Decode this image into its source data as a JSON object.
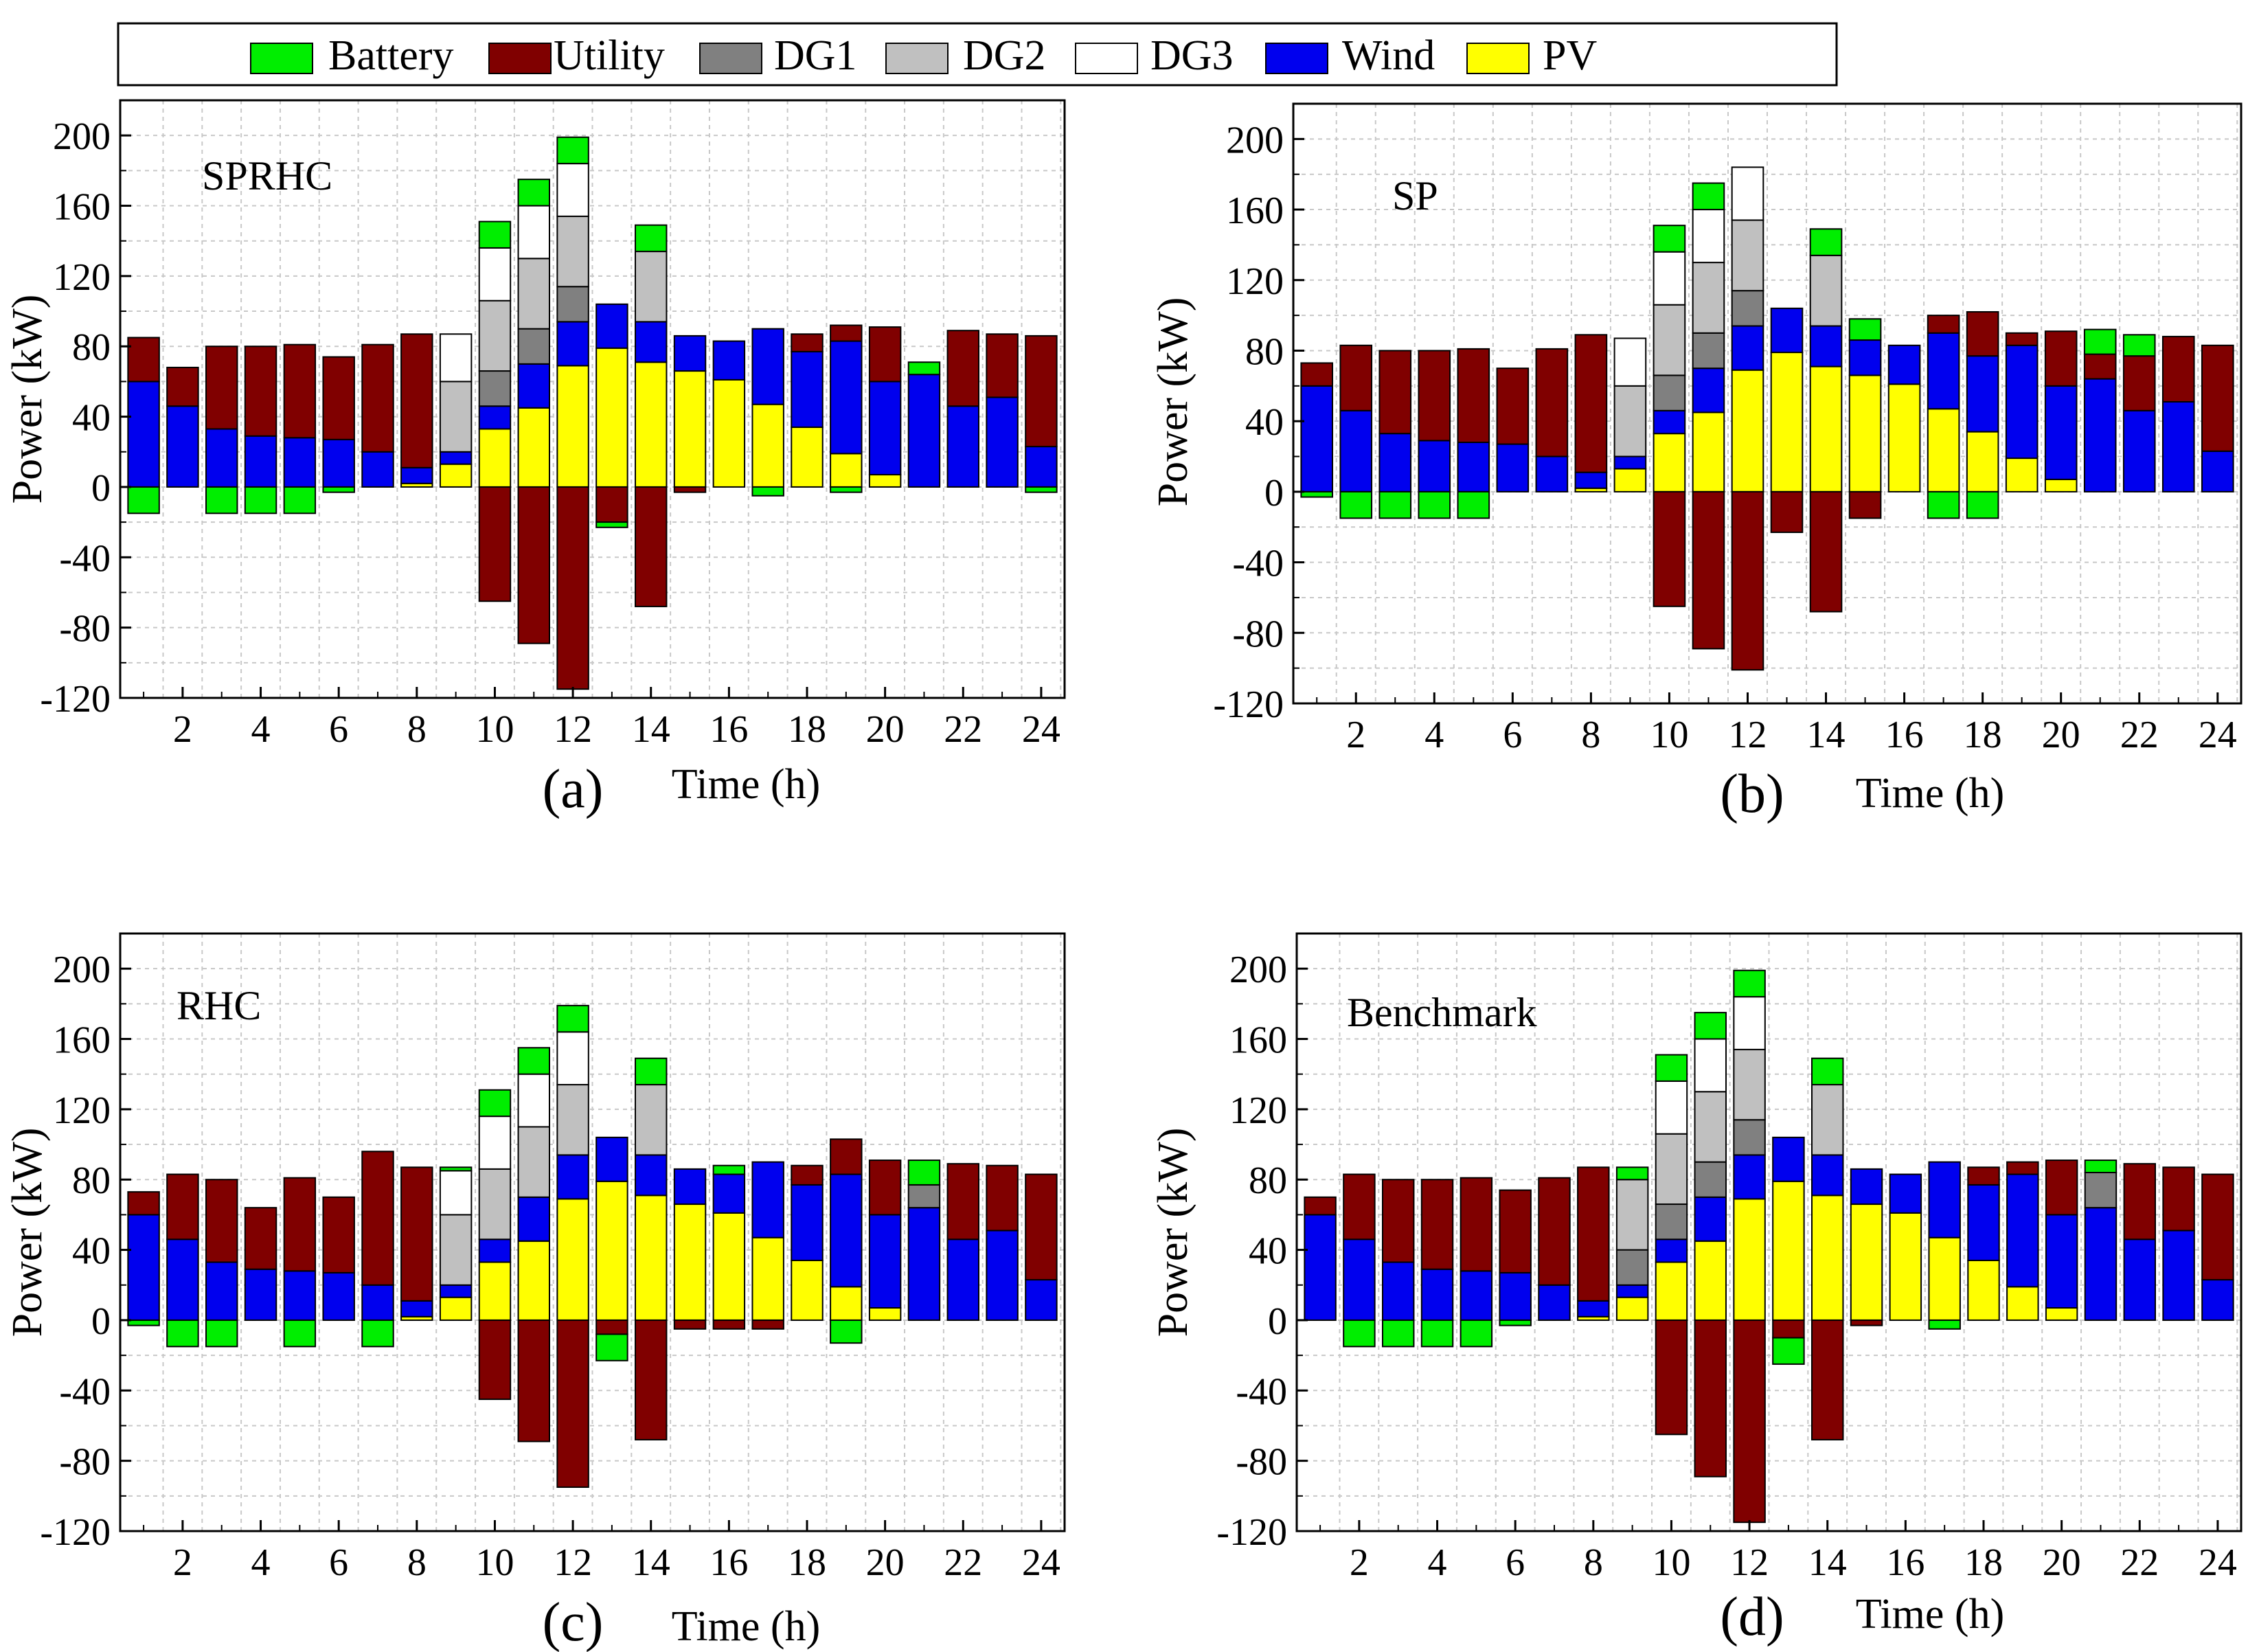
{
  "legend": {
    "items": [
      {
        "key": "battery",
        "label": "Battery"
      },
      {
        "key": "utility",
        "label": "Utility"
      },
      {
        "key": "dg1",
        "label": "DG1"
      },
      {
        "key": "dg2",
        "label": "DG2"
      },
      {
        "key": "dg3",
        "label": "DG3"
      },
      {
        "key": "wind",
        "label": "Wind"
      },
      {
        "key": "pv",
        "label": "PV"
      }
    ]
  },
  "colors": {
    "battery": "#00ee00",
    "utility": "#800000",
    "dg1": "#808080",
    "dg2": "#c0c0c0",
    "dg3": "#ffffff",
    "wind": "#0000ee",
    "pv": "#ffff00"
  },
  "stack_order": [
    "pv",
    "wind",
    "dg1",
    "dg2",
    "dg3",
    "utility",
    "battery"
  ],
  "chart_data": [
    {
      "type": "bar",
      "stacked": true,
      "panel_label": "(a)",
      "title": "SPRHC",
      "xlabel": "Time (h)",
      "ylabel": "Power (kW)",
      "xticks": [
        2,
        4,
        6,
        8,
        10,
        12,
        14,
        16,
        18,
        20,
        22,
        24
      ],
      "yticks": [
        -120,
        -80,
        -40,
        0,
        40,
        80,
        120,
        160,
        200
      ],
      "ylim": [
        -120,
        220
      ],
      "categories": [
        1,
        2,
        3,
        4,
        5,
        6,
        7,
        8,
        9,
        10,
        11,
        12,
        13,
        14,
        15,
        16,
        17,
        18,
        19,
        20,
        21,
        22,
        23,
        24
      ],
      "series": [
        {
          "key": "pv",
          "name": "PV",
          "values": [
            0,
            0,
            0,
            0,
            0,
            0,
            0,
            2,
            13,
            33,
            45,
            69,
            79,
            71,
            66,
            61,
            47,
            34,
            19,
            7,
            0,
            0,
            0,
            0
          ]
        },
        {
          "key": "wind",
          "name": "Wind",
          "values": [
            60,
            46,
            33,
            29,
            28,
            27,
            20,
            9,
            7,
            13,
            25,
            25,
            25,
            23,
            20,
            22,
            43,
            43,
            64,
            53,
            64,
            46,
            51,
            23
          ]
        },
        {
          "key": "dg1",
          "name": "DG1",
          "values": [
            0,
            0,
            0,
            0,
            0,
            0,
            0,
            0,
            0,
            20,
            20,
            20,
            0,
            0,
            0,
            0,
            0,
            0,
            0,
            0,
            0,
            0,
            0,
            0
          ]
        },
        {
          "key": "dg2",
          "name": "DG2",
          "values": [
            0,
            0,
            0,
            0,
            0,
            0,
            0,
            0,
            40,
            40,
            40,
            40,
            0,
            40,
            0,
            0,
            0,
            0,
            0,
            0,
            0,
            0,
            0,
            0
          ]
        },
        {
          "key": "dg3",
          "name": "DG3",
          "values": [
            0,
            0,
            0,
            0,
            0,
            0,
            0,
            0,
            27,
            30,
            30,
            30,
            0,
            0,
            0,
            0,
            0,
            0,
            0,
            0,
            0,
            0,
            0,
            0
          ]
        },
        {
          "key": "utility",
          "name": "Utility",
          "values": [
            25,
            22,
            47,
            51,
            53,
            47,
            61,
            76,
            0,
            -65,
            -89,
            -115,
            -20,
            -68,
            -3,
            0,
            0,
            10,
            9,
            31,
            0,
            43,
            36,
            63
          ]
        },
        {
          "key": "battery",
          "name": "Battery",
          "values": [
            -15,
            0,
            -15,
            -15,
            -15,
            -3,
            0,
            0,
            0,
            15,
            15,
            15,
            -3,
            15,
            0,
            0,
            -5,
            0,
            -3,
            0,
            7,
            0,
            0,
            -3
          ]
        }
      ]
    },
    {
      "type": "bar",
      "stacked": true,
      "panel_label": "(b)",
      "title": "SP",
      "xlabel": "Time (h)",
      "ylabel": "Power (kW)",
      "xticks": [
        2,
        4,
        6,
        8,
        10,
        12,
        14,
        16,
        18,
        20,
        22,
        24
      ],
      "yticks": [
        -120,
        -80,
        -40,
        0,
        40,
        80,
        120,
        160,
        200
      ],
      "ylim": [
        -120,
        220
      ],
      "categories": [
        1,
        2,
        3,
        4,
        5,
        6,
        7,
        8,
        9,
        10,
        11,
        12,
        13,
        14,
        15,
        16,
        17,
        18,
        19,
        20,
        21,
        22,
        23,
        24
      ],
      "series": [
        {
          "key": "pv",
          "name": "PV",
          "values": [
            0,
            0,
            0,
            0,
            0,
            0,
            0,
            2,
            13,
            33,
            45,
            69,
            79,
            71,
            66,
            61,
            47,
            34,
            19,
            7,
            0,
            0,
            0,
            0
          ]
        },
        {
          "key": "wind",
          "name": "Wind",
          "values": [
            60,
            46,
            33,
            29,
            28,
            27,
            20,
            9,
            7,
            13,
            25,
            25,
            25,
            23,
            20,
            22,
            43,
            43,
            64,
            53,
            64,
            46,
            51,
            23
          ]
        },
        {
          "key": "dg1",
          "name": "DG1",
          "values": [
            0,
            0,
            0,
            0,
            0,
            0,
            0,
            0,
            0,
            20,
            20,
            20,
            0,
            0,
            0,
            0,
            0,
            0,
            0,
            0,
            0,
            0,
            0,
            0
          ]
        },
        {
          "key": "dg2",
          "name": "DG2",
          "values": [
            0,
            0,
            0,
            0,
            0,
            0,
            0,
            0,
            40,
            40,
            40,
            40,
            0,
            40,
            0,
            0,
            0,
            0,
            0,
            0,
            0,
            0,
            0,
            0
          ]
        },
        {
          "key": "dg3",
          "name": "DG3",
          "values": [
            0,
            0,
            0,
            0,
            0,
            0,
            0,
            0,
            27,
            30,
            30,
            30,
            0,
            0,
            0,
            0,
            0,
            0,
            0,
            0,
            0,
            0,
            0,
            0
          ]
        },
        {
          "key": "utility",
          "name": "Utility",
          "values": [
            13,
            37,
            47,
            51,
            53,
            43,
            61,
            78,
            0,
            -65,
            -89,
            -101,
            -23,
            -68,
            -15,
            0,
            10,
            25,
            7,
            31,
            14,
            31,
            37,
            60
          ]
        },
        {
          "key": "battery",
          "name": "Battery",
          "values": [
            -3,
            -15,
            -15,
            -15,
            -15,
            0,
            0,
            0,
            0,
            15,
            15,
            0,
            0,
            15,
            12,
            0,
            -15,
            -15,
            0,
            0,
            14,
            12,
            0,
            0
          ]
        }
      ]
    },
    {
      "type": "bar",
      "stacked": true,
      "panel_label": "(c)",
      "title": "RHC",
      "xlabel": "Time (h)",
      "ylabel": "Power (kW)",
      "xticks": [
        2,
        4,
        6,
        8,
        10,
        12,
        14,
        16,
        18,
        20,
        22,
        24
      ],
      "yticks": [
        -120,
        -80,
        -40,
        0,
        40,
        80,
        120,
        160,
        200
      ],
      "ylim": [
        -120,
        220
      ],
      "categories": [
        1,
        2,
        3,
        4,
        5,
        6,
        7,
        8,
        9,
        10,
        11,
        12,
        13,
        14,
        15,
        16,
        17,
        18,
        19,
        20,
        21,
        22,
        23,
        24
      ],
      "series": [
        {
          "key": "pv",
          "name": "PV",
          "values": [
            0,
            0,
            0,
            0,
            0,
            0,
            0,
            2,
            13,
            33,
            45,
            69,
            79,
            71,
            66,
            61,
            47,
            34,
            19,
            7,
            0,
            0,
            0,
            0
          ]
        },
        {
          "key": "wind",
          "name": "Wind",
          "values": [
            60,
            46,
            33,
            29,
            28,
            27,
            20,
            9,
            7,
            13,
            25,
            25,
            25,
            23,
            20,
            22,
            43,
            43,
            64,
            53,
            64,
            46,
            51,
            23
          ]
        },
        {
          "key": "dg1",
          "name": "DG1",
          "values": [
            0,
            0,
            0,
            0,
            0,
            0,
            0,
            0,
            0,
            0,
            0,
            0,
            0,
            0,
            0,
            0,
            0,
            0,
            0,
            0,
            13,
            0,
            0,
            0
          ]
        },
        {
          "key": "dg2",
          "name": "DG2",
          "values": [
            0,
            0,
            0,
            0,
            0,
            0,
            0,
            0,
            40,
            40,
            40,
            40,
            0,
            40,
            0,
            0,
            0,
            0,
            0,
            0,
            0,
            0,
            0,
            0
          ]
        },
        {
          "key": "dg3",
          "name": "DG3",
          "values": [
            0,
            0,
            0,
            0,
            0,
            0,
            0,
            0,
            25,
            30,
            30,
            30,
            0,
            0,
            0,
            0,
            0,
            0,
            0,
            0,
            0,
            0,
            0,
            0
          ]
        },
        {
          "key": "utility",
          "name": "Utility",
          "values": [
            13,
            37,
            47,
            35,
            53,
            43,
            76,
            76,
            0,
            -45,
            -69,
            -95,
            -8,
            -68,
            -5,
            -5,
            -5,
            11,
            20,
            31,
            0,
            43,
            37,
            60
          ]
        },
        {
          "key": "battery",
          "name": "Battery",
          "values": [
            -3,
            -15,
            -15,
            0,
            -15,
            0,
            -15,
            0,
            2,
            15,
            15,
            15,
            -15,
            15,
            0,
            5,
            0,
            0,
            -13,
            0,
            14,
            0,
            0,
            0
          ]
        }
      ]
    },
    {
      "type": "bar",
      "stacked": true,
      "panel_label": "(d)",
      "title": "Benchmark",
      "xlabel": "Time (h)",
      "ylabel": "Power (kW)",
      "xticks": [
        2,
        4,
        6,
        8,
        10,
        12,
        14,
        16,
        18,
        20,
        22,
        24
      ],
      "yticks": [
        -120,
        -80,
        -40,
        0,
        40,
        80,
        120,
        160,
        200
      ],
      "ylim": [
        -120,
        220
      ],
      "categories": [
        1,
        2,
        3,
        4,
        5,
        6,
        7,
        8,
        9,
        10,
        11,
        12,
        13,
        14,
        15,
        16,
        17,
        18,
        19,
        20,
        21,
        22,
        23,
        24
      ],
      "series": [
        {
          "key": "pv",
          "name": "PV",
          "values": [
            0,
            0,
            0,
            0,
            0,
            0,
            0,
            2,
            13,
            33,
            45,
            69,
            79,
            71,
            66,
            61,
            47,
            34,
            19,
            7,
            0,
            0,
            0,
            0
          ]
        },
        {
          "key": "wind",
          "name": "Wind",
          "values": [
            60,
            46,
            33,
            29,
            28,
            27,
            20,
            9,
            7,
            13,
            25,
            25,
            25,
            23,
            20,
            22,
            43,
            43,
            64,
            53,
            64,
            46,
            51,
            23
          ]
        },
        {
          "key": "dg1",
          "name": "DG1",
          "values": [
            0,
            0,
            0,
            0,
            0,
            0,
            0,
            0,
            20,
            20,
            20,
            20,
            0,
            0,
            0,
            0,
            0,
            0,
            0,
            0,
            20,
            0,
            0,
            0
          ]
        },
        {
          "key": "dg2",
          "name": "DG2",
          "values": [
            0,
            0,
            0,
            0,
            0,
            0,
            0,
            0,
            40,
            40,
            40,
            40,
            0,
            40,
            0,
            0,
            0,
            0,
            0,
            0,
            0,
            0,
            0,
            0
          ]
        },
        {
          "key": "dg3",
          "name": "DG3",
          "values": [
            0,
            0,
            0,
            0,
            0,
            0,
            0,
            0,
            0,
            30,
            30,
            30,
            0,
            0,
            0,
            0,
            0,
            0,
            0,
            0,
            0,
            0,
            0,
            0
          ]
        },
        {
          "key": "utility",
          "name": "Utility",
          "values": [
            10,
            37,
            47,
            51,
            53,
            47,
            61,
            76,
            0,
            -65,
            -89,
            -115,
            -10,
            -68,
            -3,
            0,
            0,
            10,
            7,
            31,
            0,
            43,
            36,
            60
          ]
        },
        {
          "key": "battery",
          "name": "Battery",
          "values": [
            0,
            -15,
            -15,
            -15,
            -15,
            -3,
            0,
            0,
            7,
            15,
            15,
            15,
            -15,
            15,
            0,
            0,
            -5,
            0,
            0,
            0,
            7,
            0,
            0,
            0
          ]
        }
      ]
    }
  ]
}
